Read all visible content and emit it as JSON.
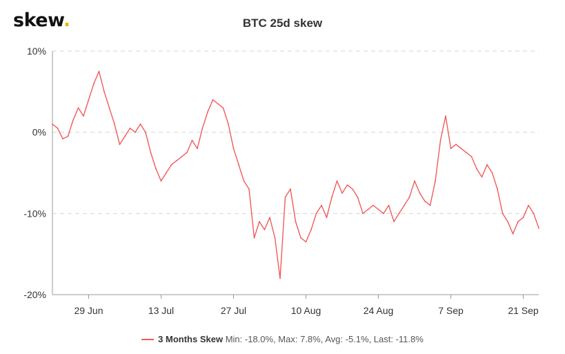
{
  "logo": {
    "text": "skew",
    "dot": "."
  },
  "chart_data": {
    "type": "line",
    "title": "BTC 25d skew",
    "ylim": [
      -20,
      10
    ],
    "y_ticks": [
      10,
      0,
      -10,
      -20
    ],
    "y_tick_labels": [
      "10%",
      "0%",
      "-10%",
      "-20%"
    ],
    "x_domain": [
      "2020-06-22",
      "2020-09-24"
    ],
    "x_ticks": [
      "2020-06-29",
      "2020-07-13",
      "2020-07-27",
      "2020-08-10",
      "2020-08-24",
      "2020-09-07",
      "2020-09-21"
    ],
    "x_tick_labels": [
      "29 Jun",
      "13 Jul",
      "27 Jul",
      "10 Aug",
      "24 Aug",
      "7 Sep",
      "21 Sep"
    ],
    "grid": true,
    "legend_position": "bottom-center",
    "series": [
      {
        "name": "3 Months Skew",
        "color": "#f05a5b",
        "points": [
          [
            "2020-06-22",
            1.0
          ],
          [
            "2020-06-23",
            0.5
          ],
          [
            "2020-06-24",
            -0.8
          ],
          [
            "2020-06-25",
            -0.5
          ],
          [
            "2020-06-26",
            1.5
          ],
          [
            "2020-06-27",
            3.0
          ],
          [
            "2020-06-28",
            2.0
          ],
          [
            "2020-06-29",
            4.0
          ],
          [
            "2020-06-30",
            6.0
          ],
          [
            "2020-07-01",
            7.5
          ],
          [
            "2020-07-02",
            5.0
          ],
          [
            "2020-07-03",
            3.0
          ],
          [
            "2020-07-04",
            1.0
          ],
          [
            "2020-07-05",
            -1.5
          ],
          [
            "2020-07-06",
            -0.5
          ],
          [
            "2020-07-07",
            0.5
          ],
          [
            "2020-07-08",
            0.0
          ],
          [
            "2020-07-09",
            1.0
          ],
          [
            "2020-07-10",
            0.0
          ],
          [
            "2020-07-11",
            -2.5
          ],
          [
            "2020-07-12",
            -4.5
          ],
          [
            "2020-07-13",
            -6.0
          ],
          [
            "2020-07-14",
            -5.0
          ],
          [
            "2020-07-15",
            -4.0
          ],
          [
            "2020-07-16",
            -3.5
          ],
          [
            "2020-07-17",
            -3.0
          ],
          [
            "2020-07-18",
            -2.5
          ],
          [
            "2020-07-19",
            -1.0
          ],
          [
            "2020-07-20",
            -2.0
          ],
          [
            "2020-07-21",
            0.5
          ],
          [
            "2020-07-22",
            2.5
          ],
          [
            "2020-07-23",
            4.0
          ],
          [
            "2020-07-24",
            3.5
          ],
          [
            "2020-07-25",
            3.0
          ],
          [
            "2020-07-26",
            1.0
          ],
          [
            "2020-07-27",
            -2.0
          ],
          [
            "2020-07-28",
            -4.0
          ],
          [
            "2020-07-29",
            -6.0
          ],
          [
            "2020-07-30",
            -7.0
          ],
          [
            "2020-07-31",
            -13.0
          ],
          [
            "2020-08-01",
            -11.0
          ],
          [
            "2020-08-02",
            -12.0
          ],
          [
            "2020-08-03",
            -10.5
          ],
          [
            "2020-08-04",
            -13.0
          ],
          [
            "2020-08-05",
            -18.0
          ],
          [
            "2020-08-06",
            -8.0
          ],
          [
            "2020-08-07",
            -7.0
          ],
          [
            "2020-08-08",
            -11.0
          ],
          [
            "2020-08-09",
            -13.0
          ],
          [
            "2020-08-10",
            -13.5
          ],
          [
            "2020-08-11",
            -12.0
          ],
          [
            "2020-08-12",
            -10.0
          ],
          [
            "2020-08-13",
            -9.0
          ],
          [
            "2020-08-14",
            -10.5
          ],
          [
            "2020-08-15",
            -8.0
          ],
          [
            "2020-08-16",
            -6.0
          ],
          [
            "2020-08-17",
            -7.5
          ],
          [
            "2020-08-18",
            -6.5
          ],
          [
            "2020-08-19",
            -7.0
          ],
          [
            "2020-08-20",
            -8.0
          ],
          [
            "2020-08-21",
            -10.0
          ],
          [
            "2020-08-22",
            -9.5
          ],
          [
            "2020-08-23",
            -9.0
          ],
          [
            "2020-08-24",
            -9.5
          ],
          [
            "2020-08-25",
            -10.0
          ],
          [
            "2020-08-26",
            -9.0
          ],
          [
            "2020-08-27",
            -11.0
          ],
          [
            "2020-08-28",
            -10.0
          ],
          [
            "2020-08-29",
            -9.0
          ],
          [
            "2020-08-30",
            -8.0
          ],
          [
            "2020-08-31",
            -6.0
          ],
          [
            "2020-09-01",
            -7.5
          ],
          [
            "2020-09-02",
            -8.5
          ],
          [
            "2020-09-03",
            -9.0
          ],
          [
            "2020-09-04",
            -6.0
          ],
          [
            "2020-09-05",
            -1.0
          ],
          [
            "2020-09-06",
            2.0
          ],
          [
            "2020-09-07",
            -2.0
          ],
          [
            "2020-09-08",
            -1.5
          ],
          [
            "2020-09-09",
            -2.0
          ],
          [
            "2020-09-10",
            -2.5
          ],
          [
            "2020-09-11",
            -3.0
          ],
          [
            "2020-09-12",
            -4.5
          ],
          [
            "2020-09-13",
            -5.5
          ],
          [
            "2020-09-14",
            -4.0
          ],
          [
            "2020-09-15",
            -5.0
          ],
          [
            "2020-09-16",
            -7.0
          ],
          [
            "2020-09-17",
            -10.0
          ],
          [
            "2020-09-18",
            -11.0
          ],
          [
            "2020-09-19",
            -12.5
          ],
          [
            "2020-09-20",
            -11.0
          ],
          [
            "2020-09-21",
            -10.5
          ],
          [
            "2020-09-22",
            -9.0
          ],
          [
            "2020-09-23",
            -10.0
          ],
          [
            "2020-09-24",
            -11.8
          ]
        ]
      }
    ],
    "legend": {
      "name": "3 Months Skew",
      "stats": "Min: -18.0%, Max: 7.8%, Avg: -5.1%, Last: -11.8%"
    }
  }
}
